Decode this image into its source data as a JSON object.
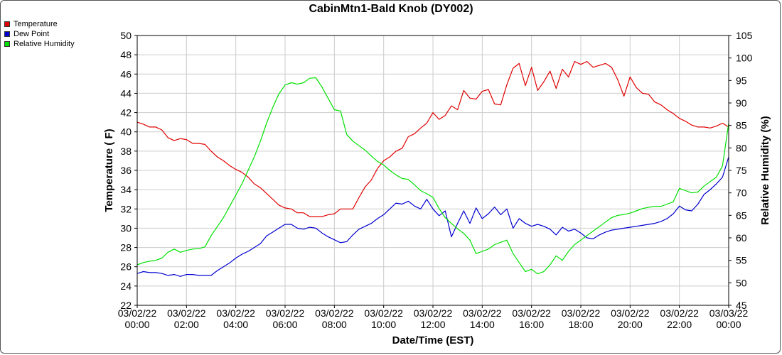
{
  "chart_data": {
    "type": "line",
    "title": "CabinMtn1-Bald Knob (DY002)",
    "xlabel": "Date/Time (EST)",
    "ylabel": "Temperature ( F)",
    "y2label": "Relative Humidity (%)",
    "ylim": [
      22,
      50
    ],
    "y2lim": [
      45,
      105
    ],
    "yticks": [
      22,
      24,
      26,
      28,
      30,
      32,
      34,
      36,
      38,
      40,
      42,
      44,
      46,
      48,
      50
    ],
    "y2ticks": [
      45,
      50,
      55,
      60,
      65,
      70,
      75,
      80,
      85,
      90,
      95,
      100,
      105
    ],
    "xlim": [
      0,
      24
    ],
    "xticks": [
      {
        "hour": 0,
        "date": "03/02/22",
        "time": "00:00"
      },
      {
        "hour": 2,
        "date": "03/02/22",
        "time": "02:00"
      },
      {
        "hour": 4,
        "date": "03/02/22",
        "time": "04:00"
      },
      {
        "hour": 6,
        "date": "03/02/22",
        "time": "06:00"
      },
      {
        "hour": 8,
        "date": "03/02/22",
        "time": "08:00"
      },
      {
        "hour": 10,
        "date": "03/02/22",
        "time": "10:00"
      },
      {
        "hour": 12,
        "date": "03/02/22",
        "time": "12:00"
      },
      {
        "hour": 14,
        "date": "03/02/22",
        "time": "14:00"
      },
      {
        "hour": 16,
        "date": "03/02/22",
        "time": "16:00"
      },
      {
        "hour": 18,
        "date": "03/02/22",
        "time": "18:00"
      },
      {
        "hour": 20,
        "date": "03/02/22",
        "time": "20:00"
      },
      {
        "hour": 22,
        "date": "03/02/22",
        "time": "22:00"
      },
      {
        "hour": 24,
        "date": "03/03/22",
        "time": "00:00"
      }
    ],
    "grid": true,
    "legend_position": "top-left",
    "series": [
      {
        "name": "Temperature",
        "color": "#e00000",
        "axis": "left",
        "points": [
          [
            0,
            41.0
          ],
          [
            0.25,
            40.8
          ],
          [
            0.5,
            40.5
          ],
          [
            0.75,
            40.5
          ],
          [
            1.0,
            40.2
          ],
          [
            1.25,
            39.4
          ],
          [
            1.5,
            39.1
          ],
          [
            1.75,
            39.3
          ],
          [
            2.0,
            39.2
          ],
          [
            2.25,
            38.8
          ],
          [
            2.5,
            38.8
          ],
          [
            2.75,
            38.7
          ],
          [
            3.0,
            38.0
          ],
          [
            3.25,
            37.4
          ],
          [
            3.5,
            37.0
          ],
          [
            3.75,
            36.5
          ],
          [
            4.0,
            36.1
          ],
          [
            4.25,
            35.8
          ],
          [
            4.5,
            35.3
          ],
          [
            4.75,
            34.6
          ],
          [
            5.0,
            34.2
          ],
          [
            5.25,
            33.6
          ],
          [
            5.5,
            33.0
          ],
          [
            5.75,
            32.4
          ],
          [
            6.0,
            32.1
          ],
          [
            6.25,
            32.0
          ],
          [
            6.5,
            31.6
          ],
          [
            6.75,
            31.6
          ],
          [
            7.0,
            31.2
          ],
          [
            7.25,
            31.2
          ],
          [
            7.5,
            31.2
          ],
          [
            7.75,
            31.4
          ],
          [
            8.0,
            31.5
          ],
          [
            8.25,
            32.0
          ],
          [
            8.5,
            32.0
          ],
          [
            8.75,
            32.0
          ],
          [
            9.0,
            33.2
          ],
          [
            9.25,
            34.3
          ],
          [
            9.5,
            35.0
          ],
          [
            9.75,
            36.2
          ],
          [
            10.0,
            37.0
          ],
          [
            10.25,
            37.4
          ],
          [
            10.5,
            38.0
          ],
          [
            10.75,
            38.3
          ],
          [
            11.0,
            39.5
          ],
          [
            11.25,
            39.8
          ],
          [
            11.5,
            40.4
          ],
          [
            11.75,
            40.9
          ],
          [
            12.0,
            42.0
          ],
          [
            12.25,
            41.3
          ],
          [
            12.5,
            41.7
          ],
          [
            12.75,
            42.7
          ],
          [
            13.0,
            42.3
          ],
          [
            13.25,
            44.3
          ],
          [
            13.5,
            43.5
          ],
          [
            13.75,
            43.4
          ],
          [
            14.0,
            44.2
          ],
          [
            14.25,
            44.4
          ],
          [
            14.5,
            42.9
          ],
          [
            14.75,
            42.8
          ],
          [
            15.0,
            44.9
          ],
          [
            15.25,
            46.6
          ],
          [
            15.5,
            47.1
          ],
          [
            15.75,
            44.8
          ],
          [
            16.0,
            46.7
          ],
          [
            16.25,
            44.3
          ],
          [
            16.5,
            45.2
          ],
          [
            16.75,
            46.3
          ],
          [
            17.0,
            44.5
          ],
          [
            17.25,
            46.5
          ],
          [
            17.5,
            45.7
          ],
          [
            17.75,
            47.3
          ],
          [
            18.0,
            47.0
          ],
          [
            18.25,
            47.3
          ],
          [
            18.5,
            46.7
          ],
          [
            18.75,
            46.9
          ],
          [
            19.0,
            47.1
          ],
          [
            19.25,
            46.7
          ],
          [
            19.5,
            45.4
          ],
          [
            19.75,
            43.7
          ],
          [
            20.0,
            45.7
          ],
          [
            20.25,
            44.6
          ],
          [
            20.5,
            44.0
          ],
          [
            20.75,
            43.9
          ],
          [
            21.0,
            43.1
          ],
          [
            21.25,
            42.8
          ],
          [
            21.5,
            42.3
          ],
          [
            21.75,
            41.9
          ],
          [
            22.0,
            41.4
          ],
          [
            22.25,
            41.1
          ],
          [
            22.5,
            40.7
          ],
          [
            22.75,
            40.5
          ],
          [
            23.0,
            40.5
          ],
          [
            23.25,
            40.4
          ],
          [
            23.5,
            40.6
          ],
          [
            23.75,
            40.9
          ],
          [
            24.0,
            40.5
          ]
        ]
      },
      {
        "name": "Dew Point",
        "color": "#0000d0",
        "axis": "left",
        "points": [
          [
            0,
            25.3
          ],
          [
            0.25,
            25.5
          ],
          [
            0.5,
            25.4
          ],
          [
            0.75,
            25.4
          ],
          [
            1.0,
            25.3
          ],
          [
            1.25,
            25.1
          ],
          [
            1.5,
            25.2
          ],
          [
            1.75,
            25.0
          ],
          [
            2.0,
            25.2
          ],
          [
            2.25,
            25.2
          ],
          [
            2.5,
            25.1
          ],
          [
            2.75,
            25.1
          ],
          [
            3.0,
            25.1
          ],
          [
            3.25,
            25.6
          ],
          [
            3.5,
            26.0
          ],
          [
            3.75,
            26.4
          ],
          [
            4.0,
            26.9
          ],
          [
            4.25,
            27.3
          ],
          [
            4.5,
            27.6
          ],
          [
            4.75,
            28.0
          ],
          [
            5.0,
            28.4
          ],
          [
            5.25,
            29.2
          ],
          [
            5.5,
            29.6
          ],
          [
            5.75,
            30.0
          ],
          [
            6.0,
            30.4
          ],
          [
            6.25,
            30.4
          ],
          [
            6.5,
            30.0
          ],
          [
            6.75,
            29.9
          ],
          [
            7.0,
            30.1
          ],
          [
            7.25,
            30.0
          ],
          [
            7.5,
            29.5
          ],
          [
            7.75,
            29.1
          ],
          [
            8.0,
            28.8
          ],
          [
            8.25,
            28.5
          ],
          [
            8.5,
            28.6
          ],
          [
            8.75,
            29.3
          ],
          [
            9.0,
            29.9
          ],
          [
            9.25,
            30.2
          ],
          [
            9.5,
            30.5
          ],
          [
            9.75,
            31.0
          ],
          [
            10.0,
            31.4
          ],
          [
            10.25,
            32.0
          ],
          [
            10.5,
            32.6
          ],
          [
            10.75,
            32.5
          ],
          [
            11.0,
            32.8
          ],
          [
            11.25,
            32.3
          ],
          [
            11.5,
            32.0
          ],
          [
            11.75,
            33.0
          ],
          [
            12.0,
            32.0
          ],
          [
            12.25,
            31.3
          ],
          [
            12.5,
            31.8
          ],
          [
            12.75,
            29.1
          ],
          [
            13.0,
            30.5
          ],
          [
            13.25,
            31.8
          ],
          [
            13.5,
            30.5
          ],
          [
            13.75,
            32.1
          ],
          [
            14.0,
            31.0
          ],
          [
            14.25,
            31.5
          ],
          [
            14.5,
            32.2
          ],
          [
            14.75,
            31.4
          ],
          [
            15.0,
            32.0
          ],
          [
            15.25,
            30.0
          ],
          [
            15.5,
            31.0
          ],
          [
            15.75,
            30.5
          ],
          [
            16.0,
            30.2
          ],
          [
            16.25,
            30.4
          ],
          [
            16.5,
            30.2
          ],
          [
            16.75,
            29.9
          ],
          [
            17.0,
            29.3
          ],
          [
            17.25,
            30.1
          ],
          [
            17.5,
            29.7
          ],
          [
            17.75,
            29.9
          ],
          [
            18.0,
            29.5
          ],
          [
            18.25,
            29.0
          ],
          [
            18.5,
            28.9
          ],
          [
            18.75,
            29.3
          ],
          [
            19.0,
            29.6
          ],
          [
            19.25,
            29.8
          ],
          [
            19.5,
            29.9
          ],
          [
            19.75,
            30.0
          ],
          [
            20.0,
            30.1
          ],
          [
            20.25,
            30.2
          ],
          [
            20.5,
            30.3
          ],
          [
            20.75,
            30.4
          ],
          [
            21.0,
            30.5
          ],
          [
            21.25,
            30.7
          ],
          [
            21.5,
            31.0
          ],
          [
            21.75,
            31.5
          ],
          [
            22.0,
            32.3
          ],
          [
            22.25,
            31.9
          ],
          [
            22.5,
            31.8
          ],
          [
            22.75,
            32.5
          ],
          [
            23.0,
            33.5
          ],
          [
            23.25,
            34.0
          ],
          [
            23.5,
            34.6
          ],
          [
            23.75,
            35.3
          ],
          [
            24.0,
            37.4
          ]
        ]
      },
      {
        "name": "Relative Humidity",
        "color": "#00e000",
        "axis": "right",
        "points": [
          [
            0,
            54.0
          ],
          [
            0.25,
            54.5
          ],
          [
            0.5,
            54.8
          ],
          [
            0.75,
            55.0
          ],
          [
            1.0,
            55.5
          ],
          [
            1.25,
            56.8
          ],
          [
            1.5,
            57.5
          ],
          [
            1.75,
            56.8
          ],
          [
            2.0,
            57.2
          ],
          [
            2.25,
            57.5
          ],
          [
            2.5,
            57.6
          ],
          [
            2.75,
            58.0
          ],
          [
            3.0,
            60.5
          ],
          [
            3.25,
            62.5
          ],
          [
            3.5,
            64.5
          ],
          [
            3.75,
            67.0
          ],
          [
            4.0,
            69.5
          ],
          [
            4.25,
            72.0
          ],
          [
            4.5,
            75.0
          ],
          [
            4.75,
            78.0
          ],
          [
            5.0,
            81.5
          ],
          [
            5.25,
            85.5
          ],
          [
            5.5,
            89.0
          ],
          [
            5.75,
            92.0
          ],
          [
            6.0,
            94.0
          ],
          [
            6.25,
            94.5
          ],
          [
            6.5,
            94.2
          ],
          [
            6.75,
            94.5
          ],
          [
            7.0,
            95.5
          ],
          [
            7.25,
            95.6
          ],
          [
            7.5,
            93.5
          ],
          [
            7.75,
            91.0
          ],
          [
            8.0,
            88.5
          ],
          [
            8.25,
            88.2
          ],
          [
            8.5,
            83.0
          ],
          [
            8.75,
            81.5
          ],
          [
            9.0,
            80.5
          ],
          [
            9.25,
            79.5
          ],
          [
            9.5,
            78.2
          ],
          [
            9.75,
            77.0
          ],
          [
            10.0,
            76.2
          ],
          [
            10.25,
            75.0
          ],
          [
            10.5,
            74.0
          ],
          [
            10.75,
            73.2
          ],
          [
            11.0,
            73.0
          ],
          [
            11.25,
            71.8
          ],
          [
            11.5,
            70.5
          ],
          [
            11.75,
            69.8
          ],
          [
            12.0,
            69.0
          ],
          [
            12.25,
            66.5
          ],
          [
            12.5,
            64.5
          ],
          [
            12.75,
            63.2
          ],
          [
            13.0,
            62.0
          ],
          [
            13.25,
            61.0
          ],
          [
            13.5,
            59.5
          ],
          [
            13.75,
            56.5
          ],
          [
            14.0,
            57.0
          ],
          [
            14.25,
            57.5
          ],
          [
            14.5,
            58.5
          ],
          [
            14.75,
            59.0
          ],
          [
            15.0,
            59.5
          ],
          [
            15.25,
            56.5
          ],
          [
            15.5,
            54.5
          ],
          [
            15.75,
            52.5
          ],
          [
            16.0,
            53.0
          ],
          [
            16.25,
            52.0
          ],
          [
            16.5,
            52.5
          ],
          [
            16.75,
            54.0
          ],
          [
            17.0,
            56.0
          ],
          [
            17.25,
            55.0
          ],
          [
            17.5,
            57.0
          ],
          [
            17.75,
            58.5
          ],
          [
            18.0,
            59.5
          ],
          [
            18.25,
            60.5
          ],
          [
            18.5,
            61.5
          ],
          [
            18.75,
            62.5
          ],
          [
            19.0,
            63.5
          ],
          [
            19.25,
            64.5
          ],
          [
            19.5,
            65.0
          ],
          [
            19.75,
            65.2
          ],
          [
            20.0,
            65.5
          ],
          [
            20.25,
            66.0
          ],
          [
            20.5,
            66.5
          ],
          [
            20.75,
            66.8
          ],
          [
            21.0,
            67.0
          ],
          [
            21.25,
            67.0
          ],
          [
            21.5,
            67.5
          ],
          [
            21.75,
            68.0
          ],
          [
            22.0,
            71.0
          ],
          [
            22.25,
            70.5
          ],
          [
            22.5,
            70.0
          ],
          [
            22.75,
            70.2
          ],
          [
            23.0,
            71.5
          ],
          [
            23.25,
            72.5
          ],
          [
            23.5,
            73.5
          ],
          [
            23.75,
            76.0
          ],
          [
            24.0,
            85.5
          ]
        ]
      }
    ]
  }
}
